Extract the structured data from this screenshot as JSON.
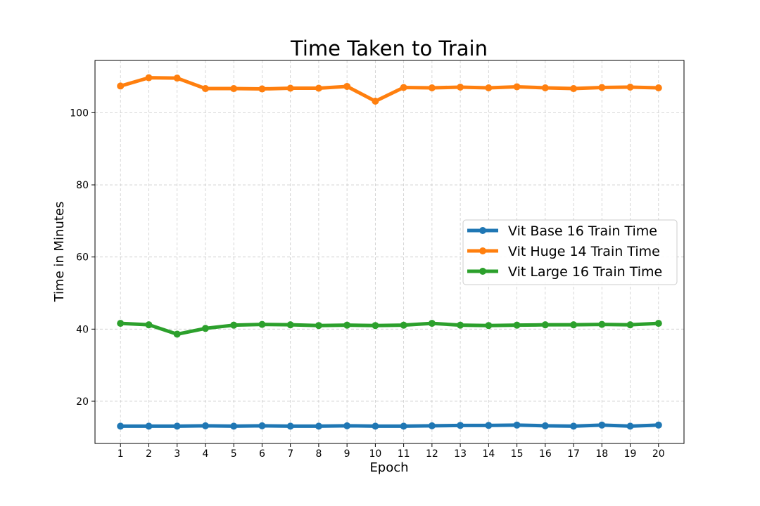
{
  "chart_data": {
    "type": "line",
    "title": "Time Taken to Train",
    "xlabel": "Epoch",
    "ylabel": "Time in Minutes",
    "x": [
      1,
      2,
      3,
      4,
      5,
      6,
      7,
      8,
      9,
      10,
      11,
      12,
      13,
      14,
      15,
      16,
      17,
      18,
      19,
      20
    ],
    "xlim": [
      0.1,
      20.9
    ],
    "ylim": [
      8.3,
      114.5
    ],
    "yticks": [
      20,
      40,
      60,
      80,
      100
    ],
    "grid": true,
    "legend_position": "center-right",
    "series": [
      {
        "name": "Vit Base 16 Train Time",
        "color": "#1f77b4",
        "values": [
          13.1,
          13.1,
          13.1,
          13.2,
          13.1,
          13.2,
          13.1,
          13.1,
          13.2,
          13.1,
          13.1,
          13.2,
          13.3,
          13.3,
          13.4,
          13.2,
          13.1,
          13.4,
          13.1,
          13.4
        ]
      },
      {
        "name": "Vit Huge 14 Train Time",
        "color": "#ff7f0e",
        "values": [
          107.4,
          109.7,
          109.6,
          106.7,
          106.7,
          106.6,
          106.8,
          106.8,
          107.3,
          103.2,
          107.0,
          106.9,
          107.1,
          106.9,
          107.2,
          106.9,
          106.7,
          107.0,
          107.1,
          106.9
        ]
      },
      {
        "name": "Vit Large 16 Train Time",
        "color": "#2ca02c",
        "values": [
          41.6,
          41.2,
          38.6,
          40.2,
          41.1,
          41.3,
          41.2,
          41.0,
          41.1,
          41.0,
          41.1,
          41.6,
          41.1,
          41.0,
          41.1,
          41.2,
          41.2,
          41.3,
          41.2,
          41.6
        ]
      }
    ]
  }
}
